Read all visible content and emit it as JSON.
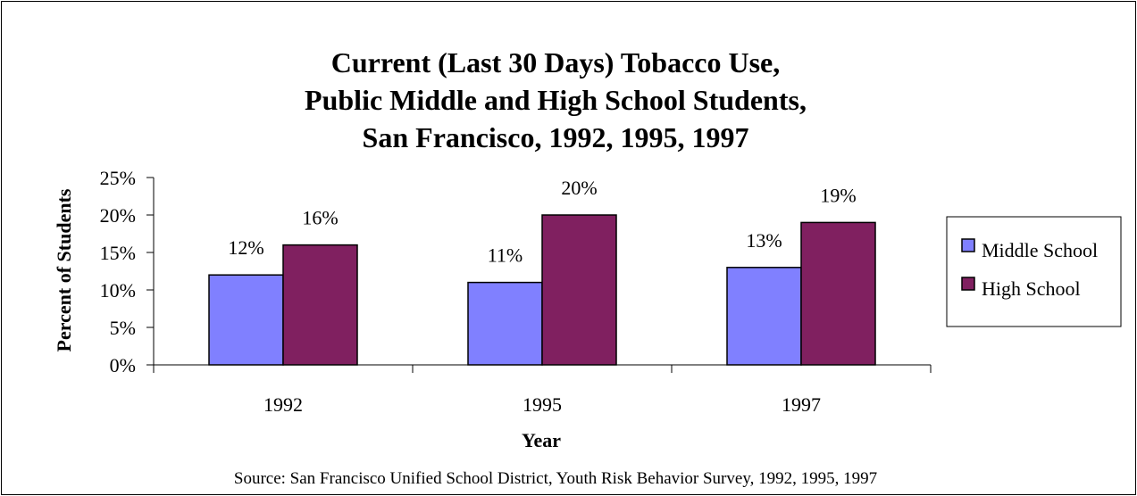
{
  "chart_data": {
    "type": "bar",
    "title_lines": [
      "Current (Last 30 Days) Tobacco Use,",
      "Public Middle and High School Students,",
      "San Francisco, 1992, 1995, 1997"
    ],
    "categories": [
      "1992",
      "1995",
      "1997"
    ],
    "series": [
      {
        "name": "Middle School",
        "values": [
          12,
          11,
          13
        ],
        "labels": [
          "12%",
          "11%",
          "13%"
        ],
        "color": "#8080FF"
      },
      {
        "name": "High School",
        "values": [
          16,
          20,
          19
        ],
        "labels": [
          "16%",
          "20%",
          "19%"
        ],
        "color": "#802060"
      }
    ],
    "xlabel": "Year",
    "ylabel": "Percent of Students",
    "ylim": [
      0,
      25
    ],
    "yticks": [
      0,
      5,
      10,
      15,
      20,
      25
    ],
    "ytick_labels": [
      "0%",
      "5%",
      "10%",
      "15%",
      "20%",
      "25%"
    ],
    "grid": false,
    "legend_position": "right",
    "source": "Source:  San Francisco Unified School District, Youth Risk Behavior Survey, 1992, 1995, 1997"
  }
}
